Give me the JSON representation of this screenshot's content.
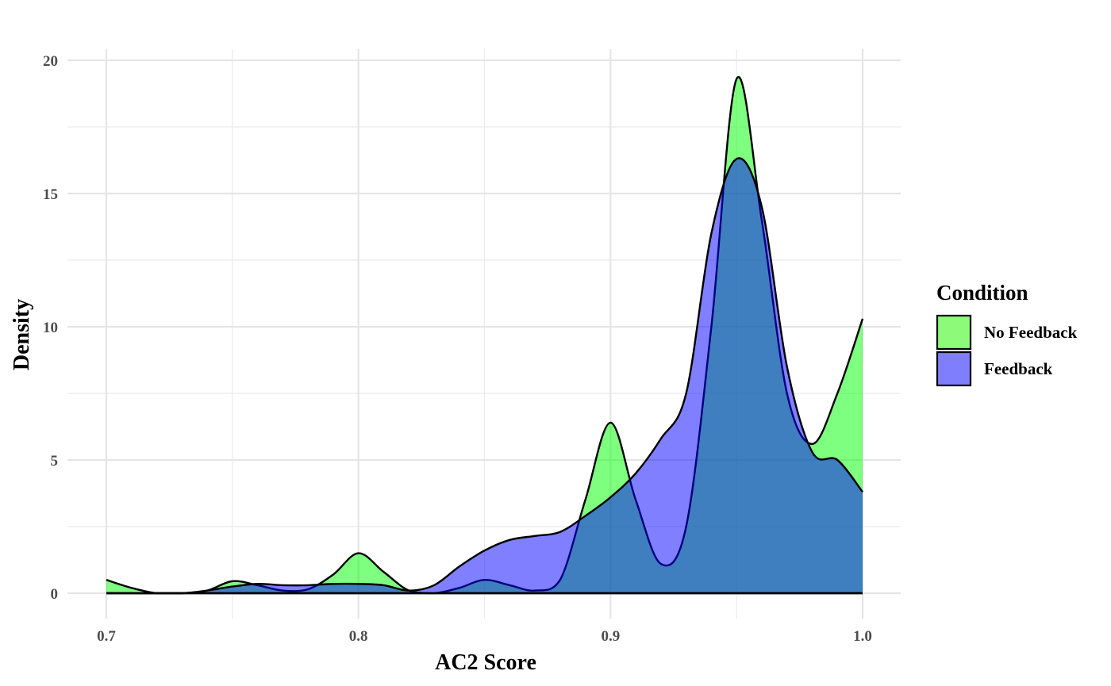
{
  "chart_data": {
    "type": "area",
    "title": "",
    "xlabel": "AC2 Score",
    "ylabel": "Density",
    "xlim": [
      0.7,
      1.0
    ],
    "ylim": [
      0,
      20
    ],
    "xticks": [
      0.7,
      0.8,
      0.9,
      1.0
    ],
    "xtick_labels": [
      "0.7",
      "0.8",
      "0.9",
      "1.0"
    ],
    "yticks": [
      0,
      5,
      10,
      15,
      20
    ],
    "ytick_labels": [
      "0",
      "5",
      "10",
      "15",
      "20"
    ],
    "grid": true,
    "legend": {
      "title": "Condition",
      "position": "right",
      "entries": [
        "No Feedback",
        "Feedback"
      ]
    },
    "x": [
      0.7,
      0.71,
      0.72,
      0.73,
      0.74,
      0.75,
      0.76,
      0.77,
      0.78,
      0.79,
      0.8,
      0.81,
      0.82,
      0.83,
      0.84,
      0.85,
      0.86,
      0.87,
      0.88,
      0.89,
      0.9,
      0.91,
      0.92,
      0.93,
      0.94,
      0.95,
      0.96,
      0.97,
      0.98,
      0.99,
      1.0
    ],
    "series": [
      {
        "name": "No Feedback",
        "color": "#00ff00",
        "values": [
          0.5,
          0.2,
          0.0,
          0.0,
          0.1,
          0.45,
          0.3,
          0.1,
          0.15,
          0.7,
          1.5,
          0.8,
          0.1,
          0.0,
          0.2,
          0.5,
          0.3,
          0.1,
          0.5,
          3.5,
          6.4,
          3.5,
          1.1,
          2.5,
          10.0,
          19.3,
          14.0,
          7.5,
          5.6,
          7.5,
          10.3
        ]
      },
      {
        "name": "Feedback",
        "color": "#0000ff",
        "values": [
          0.0,
          0.0,
          0.0,
          0.0,
          0.1,
          0.25,
          0.35,
          0.3,
          0.3,
          0.35,
          0.35,
          0.3,
          0.1,
          0.3,
          1.0,
          1.6,
          2.0,
          2.15,
          2.3,
          2.9,
          3.6,
          4.5,
          5.8,
          7.5,
          13.5,
          16.3,
          14.5,
          8.5,
          5.3,
          5.0,
          3.8
        ]
      }
    ]
  }
}
